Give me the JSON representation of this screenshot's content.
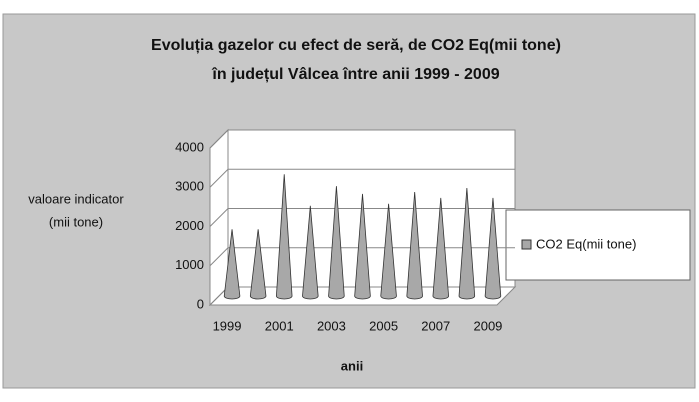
{
  "chart_data": {
    "type": "cone",
    "title": [
      "Evoluția gazelor cu efect de seră, de CO2 Eq(mii tone)",
      "în județul Vâlcea între anii 1999 - 2009"
    ],
    "y_label": [
      "valoare indicator",
      "(mii tone)"
    ],
    "x_label": "anii",
    "categories": [
      "1999",
      null,
      "2001",
      null,
      "2003",
      null,
      "2005",
      null,
      "2007",
      null,
      "2009"
    ],
    "series": [
      {
        "name": "CO2 Eq(mii tone)",
        "color": "#a8a8a8",
        "values": [
          1700,
          1700,
          3100,
          2300,
          2800,
          2600,
          2350,
          2650,
          2500,
          2750,
          2500
        ]
      }
    ],
    "ylim": [
      0,
      4000
    ],
    "yticks": [
      0,
      1000,
      2000,
      3000,
      4000
    ],
    "grid": true,
    "legend": "right"
  }
}
